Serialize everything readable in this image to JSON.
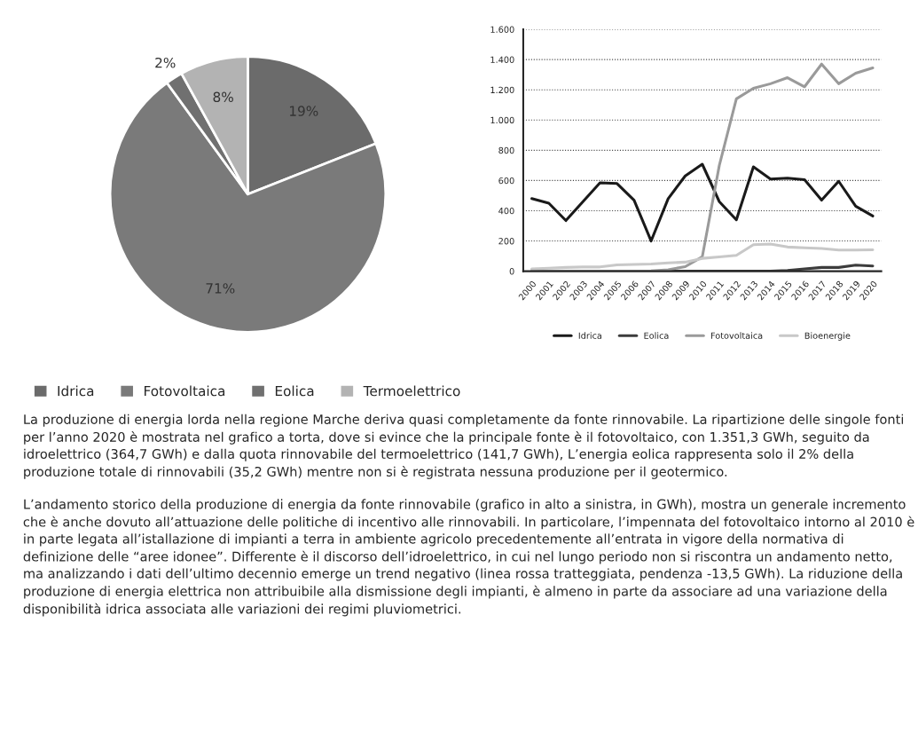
{
  "chart_data": [
    {
      "type": "pie",
      "categories": [
        "Idrica",
        "Fotovoltaica",
        "Eolica",
        "Termoelettrico"
      ],
      "values": [
        19,
        71,
        2,
        8
      ],
      "colors": [
        "#6b6b6b",
        "#7a7a7a",
        "#707070",
        "#b3b3b3"
      ],
      "value_labels": [
        "19%",
        "71%",
        "2%",
        "8%"
      ],
      "legend": "bottom"
    },
    {
      "type": "line",
      "categories": [
        "2000",
        "2001",
        "2002",
        "2003",
        "2004",
        "2005",
        "2006",
        "2007",
        "2008",
        "2009",
        "2010",
        "2011",
        "2012",
        "2013",
        "2014",
        "2015",
        "2016",
        "2017",
        "2018",
        "2019",
        "2020"
      ],
      "series": [
        {
          "name": "Idrica",
          "color": "#1a1a1a",
          "values": [
            480,
            450,
            335,
            460,
            585,
            580,
            470,
            200,
            480,
            630,
            708,
            460,
            340,
            690,
            610,
            615,
            605,
            470,
            595,
            430,
            365
          ]
        },
        {
          "name": "Eolica",
          "color": "#3c3c3c",
          "values": [
            0,
            0,
            0,
            0,
            0,
            0,
            0,
            0,
            0,
            0,
            0,
            0,
            0,
            0,
            0,
            5,
            15,
            25,
            25,
            40,
            35
          ]
        },
        {
          "name": "Fotovoltaica",
          "color": "#9a9a9a",
          "values": [
            0,
            0,
            0,
            0,
            0,
            0,
            0,
            2,
            10,
            30,
            95,
            700,
            1140,
            1210,
            1240,
            1280,
            1220,
            1370,
            1240,
            1310,
            1345
          ]
        },
        {
          "name": "Bioenergie",
          "color": "#c8c8c8",
          "values": [
            15,
            20,
            25,
            28,
            28,
            42,
            45,
            48,
            55,
            60,
            85,
            95,
            105,
            175,
            180,
            160,
            155,
            150,
            140,
            140,
            142
          ]
        }
      ],
      "ylim": [
        0,
        1600
      ],
      "yticks": [
        0,
        200,
        400,
        600,
        800,
        {
          "value": 1000,
          "label": "1.000"
        },
        {
          "value": 1200,
          "label": "1.200"
        },
        {
          "value": 1400,
          "label": "1.400"
        },
        {
          "value": 1600,
          "label": "1.600"
        }
      ],
      "grid": "y",
      "line_style": "solid",
      "marker": "none",
      "legend": "bottom",
      "annotations": [
        "La produzione di energia lorda nella regione Marche deriva quasi completamente da fonte rinnovabile. La ripartizione delle singole fonti per l’anno 2020 è mostrata nel grafico a torta, dove si evince che la principale fonte è il fotovoltaico, con 1.351,3 GWh, seguito da idroelettrico (364,7 GWh) e dalla quota rinnovabile del termoelettrico (141,7 GWh), L’energia eolica rappresenta solo il 2% della produzione totale di rinnovabili (35,2 GWh) mentre non si è registrata nessuna produzione per il geotermico.",
        "L’andamento storico della produzione di energia da fonte rinnovabile (grafico in alto a sinistra, in GWh), mostra un generale incremento che è anche dovuto all’attuazione delle politiche di incentivo alle rinnovabili. In particolare, l’impennata del fotovoltaico intorno al 2010 è in parte legata all’istallazione di impianti a terra in ambiente agricolo precedentemente all’entrata in vigore della normativa di definizione delle “aree idonee”. Differente è il discorso dell’idroelettrico, in cui nel lungo periodo non si riscontra un andamento netto, ma analizzando i dati dell’ultimo decennio emerge un trend negativo (linea rossa tratteggiata, pendenza -13,5 GWh). La riduzione della produzione di energia elettrica non attribuibile alla dismissione degli impianti, è almeno in parte da associare ad una variazione della disponibilità idrica associata alle variazioni dei regimi pluviometrici."
      ]
    }
  ]
}
